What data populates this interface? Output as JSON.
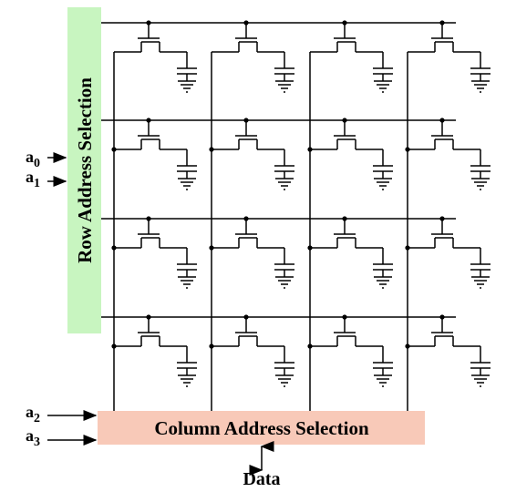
{
  "row_selector": {
    "label": "Row Address Selection",
    "color": "#c8f5c0"
  },
  "column_selector": {
    "label": "Column Address Selection",
    "color": "#f8c9b8"
  },
  "inputs": {
    "a0": {
      "base": "a",
      "sub": "0"
    },
    "a1": {
      "base": "a",
      "sub": "1"
    },
    "a2": {
      "base": "a",
      "sub": "2"
    },
    "a3": {
      "base": "a",
      "sub": "3"
    }
  },
  "data_label": "Data",
  "grid": {
    "rows": 4,
    "columns": 4
  },
  "line_color": "#000000"
}
